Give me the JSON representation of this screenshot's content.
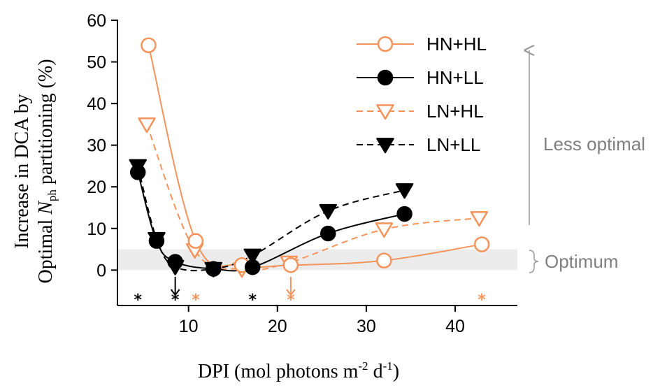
{
  "chart_data": {
    "type": "line",
    "xlabel_prefix": "DPI (mol photons m",
    "xlabel_sup1": "-2",
    "xlabel_mid": " d",
    "xlabel_sup2": "-1",
    "xlabel_suffix": ")",
    "ylabel_line1": "Increase in DCA by",
    "ylabel_line2_prefix": "Optimal ",
    "ylabel_line2_italic": "N",
    "ylabel_line2_sub": "ph",
    "ylabel_line2_suffix": " partitioning (%)",
    "xlim": [
      2,
      47
    ],
    "ylim": [
      -8.5,
      60
    ],
    "x_ticks": [
      10,
      20,
      30,
      40
    ],
    "y_ticks": [
      0,
      10,
      20,
      30,
      40,
      50,
      60
    ],
    "optimum_band": [
      0,
      5
    ],
    "legend_position": "top-right",
    "series": [
      {
        "name": "HN+HL",
        "color": "#f4935a",
        "marker": "open-circle",
        "line": "solid",
        "points": [
          [
            5.5,
            54
          ],
          [
            10.8,
            7
          ],
          [
            16,
            1.2
          ],
          [
            21.5,
            1.2
          ],
          [
            32,
            2.3
          ],
          [
            43,
            6.2
          ]
        ]
      },
      {
        "name": "HN+LL",
        "color": "#000000",
        "marker": "filled-circle",
        "line": "solid",
        "points": [
          [
            4.3,
            23.5
          ],
          [
            6.4,
            7
          ],
          [
            8.5,
            2
          ],
          [
            12.8,
            0.3
          ],
          [
            17.2,
            0.7
          ],
          [
            25.7,
            8.8
          ],
          [
            34.3,
            13.5
          ]
        ]
      },
      {
        "name": "LN+HL",
        "color": "#f4935a",
        "marker": "open-triangle-down",
        "line": "dashed",
        "points": [
          [
            5.3,
            35
          ],
          [
            10.7,
            4.8
          ],
          [
            16,
            0.2
          ],
          [
            21.3,
            1.8
          ],
          [
            32,
            9.8
          ],
          [
            42.7,
            12.5
          ]
        ]
      },
      {
        "name": "LN+LL",
        "color": "#000000",
        "marker": "filled-triangle-down",
        "line": "dashed",
        "points": [
          [
            4.3,
            25
          ],
          [
            6.4,
            7.5
          ],
          [
            8.5,
            0.8
          ],
          [
            12.8,
            0.3
          ],
          [
            17.2,
            3.5
          ],
          [
            25.7,
            14.2
          ],
          [
            34.3,
            19.2
          ]
        ]
      }
    ],
    "optimum_arrows": [
      {
        "x": 8.5,
        "color": "#000000"
      },
      {
        "x": 21.5,
        "color": "#f4935a"
      }
    ],
    "significance_stars": [
      {
        "x": 4.3,
        "color": "#000000",
        "label": "*"
      },
      {
        "x": 8.5,
        "color": "#000000",
        "label": "*"
      },
      {
        "x": 10.8,
        "color": "#f4935a",
        "label": "*"
      },
      {
        "x": 17.2,
        "color": "#000000",
        "label": "*"
      },
      {
        "x": 21.5,
        "color": "#f4935a",
        "label": "*"
      },
      {
        "x": 43,
        "color": "#f4935a",
        "label": "*"
      }
    ],
    "annotations": {
      "less_optimal": "Less optimal",
      "optimum": "Optimum"
    }
  }
}
